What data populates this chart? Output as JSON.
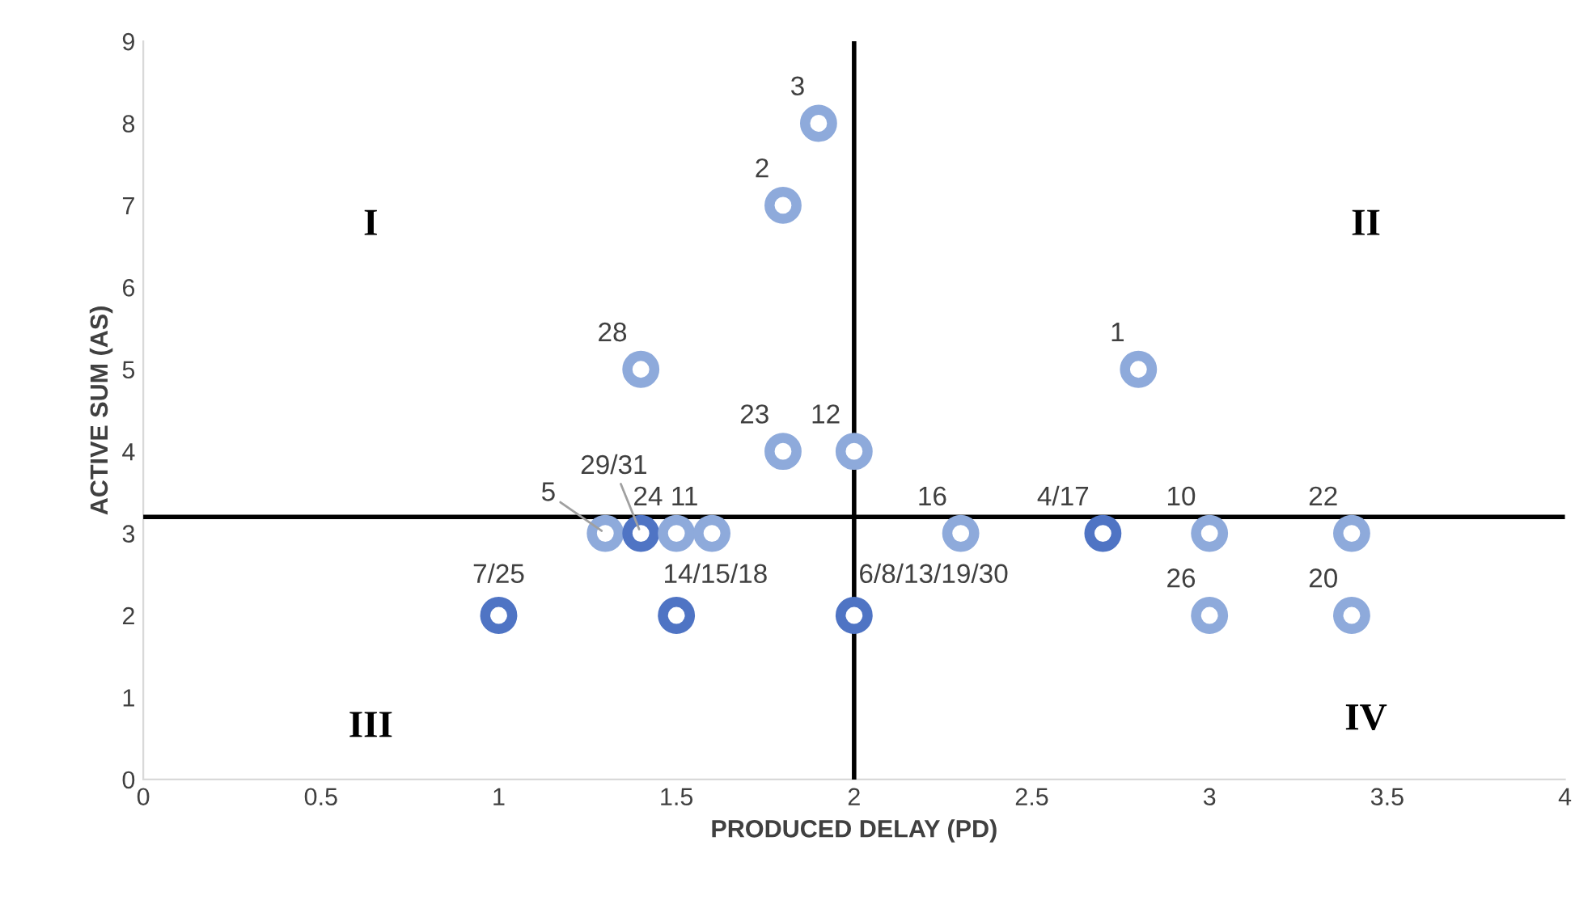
{
  "chart_data": {
    "type": "scatter",
    "xlabel": "PRODUCED DELAY (PD)",
    "ylabel": "ACTIVE SUM (AS)",
    "x": [
      1.9,
      1.8,
      1.4,
      2.8,
      1.8,
      2,
      1.3,
      1.4,
      1.5,
      1.6,
      2.3,
      2.7,
      3,
      3.4,
      1,
      1.5,
      2,
      3,
      3.4
    ],
    "values": [
      8,
      7,
      5,
      5,
      4,
      4,
      3,
      3,
      3,
      3,
      3,
      3,
      3,
      3,
      2,
      2,
      2,
      2,
      2
    ],
    "colors": [
      "#8eaadb",
      "#8eaadb",
      "#8eaadb",
      "#8eaadb",
      "#8eaadb",
      "#8eaadb",
      "#8eaadb",
      "#4f74c4",
      "#8eaadb",
      "#8eaadb",
      "#8eaadb",
      "#4f74c4",
      "#8eaadb",
      "#8eaadb",
      "#4f74c4",
      "#4f74c4",
      "#4f74c4",
      "#8eaadb",
      "#8eaadb"
    ],
    "marker": "circle",
    "grid": false,
    "xlim": [
      0,
      4
    ],
    "xticks": [
      0,
      0.5,
      1,
      1.5,
      2,
      2.5,
      3,
      3.5,
      4
    ],
    "ylim": [
      0,
      9
    ],
    "yticks": [
      0,
      1,
      2,
      3,
      4,
      5,
      6,
      7,
      8,
      9
    ],
    "ref_lines": [
      {
        "axis": "y",
        "value": 3.2,
        "color": "#000000"
      },
      {
        "axis": "x",
        "value": 2,
        "color": "#000000"
      }
    ],
    "annotations": [
      "I",
      "II",
      "III",
      "IV",
      {
        "text": "3",
        "x": 1.9,
        "y": 8
      },
      {
        "text": "2",
        "x": 1.8,
        "y": 7
      },
      {
        "text": "28",
        "x": 1.4,
        "y": 5
      },
      {
        "text": "1",
        "x": 2.8,
        "y": 5
      },
      {
        "text": "23",
        "x": 1.8,
        "y": 4
      },
      {
        "text": "12",
        "x": 2,
        "y": 4
      },
      {
        "text": "5",
        "x": 1.3,
        "y": 3
      },
      {
        "text": "29/31",
        "x": 1.4,
        "y": 3
      },
      {
        "text": "24",
        "x": 1.5,
        "y": 3
      },
      {
        "text": "11",
        "x": 1.6,
        "y": 3
      },
      {
        "text": "16",
        "x": 2.3,
        "y": 3
      },
      {
        "text": "4/17",
        "x": 2.7,
        "y": 3
      },
      {
        "text": "10",
        "x": 3,
        "y": 3
      },
      {
        "text": "22",
        "x": 3.4,
        "y": 3
      },
      {
        "text": "7/25",
        "x": 1,
        "y": 2
      },
      {
        "text": "14/15/18",
        "x": 1.5,
        "y": 2
      },
      {
        "text": "6/8/13/19/30",
        "x": 2,
        "y": 2
      },
      {
        "text": "26",
        "x": 3,
        "y": 2
      },
      {
        "text": "20",
        "x": 3.4,
        "y": 2
      }
    ]
  }
}
